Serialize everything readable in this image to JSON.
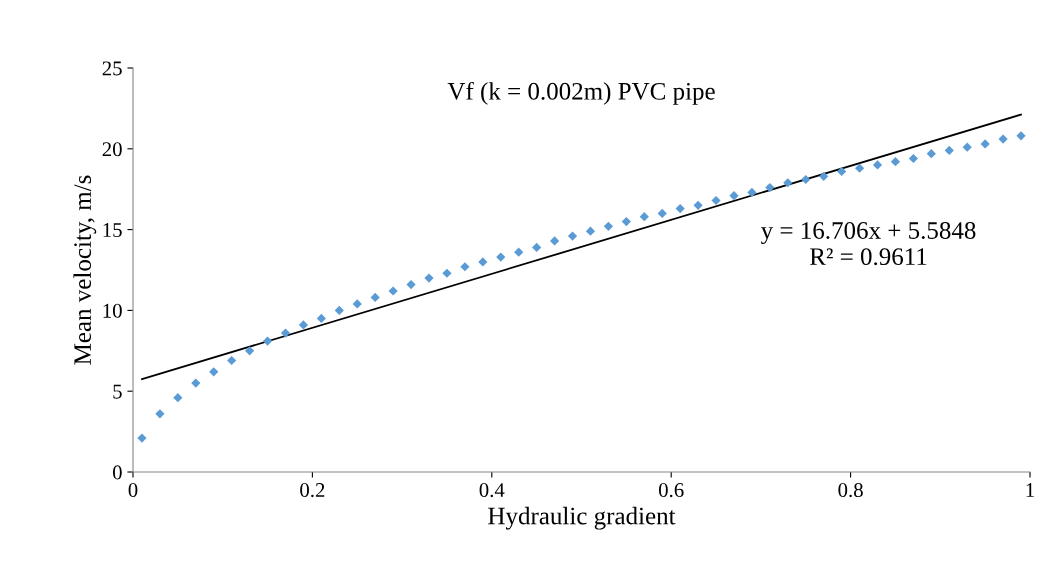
{
  "chart_data": {
    "type": "scatter",
    "title": "Vf (k = 0.002m) PVC pipe",
    "xlabel": "Hydraulic gradient",
    "ylabel": "Mean velocity, m/s",
    "xlim": [
      0,
      1
    ],
    "xticks": [
      0,
      0.2,
      0.4,
      0.6,
      0.8,
      1
    ],
    "ylim": [
      0,
      25
    ],
    "yticks": [
      0,
      5,
      10,
      15,
      20,
      25
    ],
    "grid": false,
    "legend": false,
    "series": [
      {
        "marker": "diamond",
        "color": "#5b9bd5",
        "x": [
          0.01,
          0.03,
          0.05,
          0.07,
          0.09,
          0.11,
          0.13,
          0.15,
          0.17,
          0.19,
          0.21,
          0.23,
          0.25,
          0.27,
          0.29,
          0.31,
          0.33,
          0.35,
          0.37,
          0.39,
          0.41,
          0.43,
          0.45,
          0.47,
          0.49,
          0.51,
          0.53,
          0.55,
          0.57,
          0.59,
          0.61,
          0.63,
          0.65,
          0.67,
          0.69,
          0.71,
          0.73,
          0.75,
          0.77,
          0.79,
          0.81,
          0.83,
          0.85,
          0.87,
          0.89,
          0.91,
          0.93,
          0.95,
          0.97,
          0.99
        ],
        "values": [
          2.1,
          3.6,
          4.6,
          5.5,
          6.2,
          6.9,
          7.5,
          8.1,
          8.6,
          9.1,
          9.5,
          10.0,
          10.4,
          10.8,
          11.2,
          11.6,
          12.0,
          12.3,
          12.7,
          13.0,
          13.3,
          13.6,
          13.9,
          14.3,
          14.6,
          14.9,
          15.2,
          15.5,
          15.8,
          16.0,
          16.3,
          16.5,
          16.8,
          17.1,
          17.3,
          17.6,
          17.9,
          18.1,
          18.3,
          18.6,
          18.8,
          19.0,
          19.2,
          19.4,
          19.7,
          19.9,
          20.1,
          20.3,
          20.6,
          20.8
        ]
      },
      {
        "type": "line",
        "color": "#000000",
        "line_style": "solid",
        "x": [
          0.01,
          0.99
        ],
        "values": [
          5.75,
          22.12
        ]
      }
    ],
    "annotations": [
      "y = 16.706x + 5.5848\nR² = 0.9611"
    ]
  }
}
